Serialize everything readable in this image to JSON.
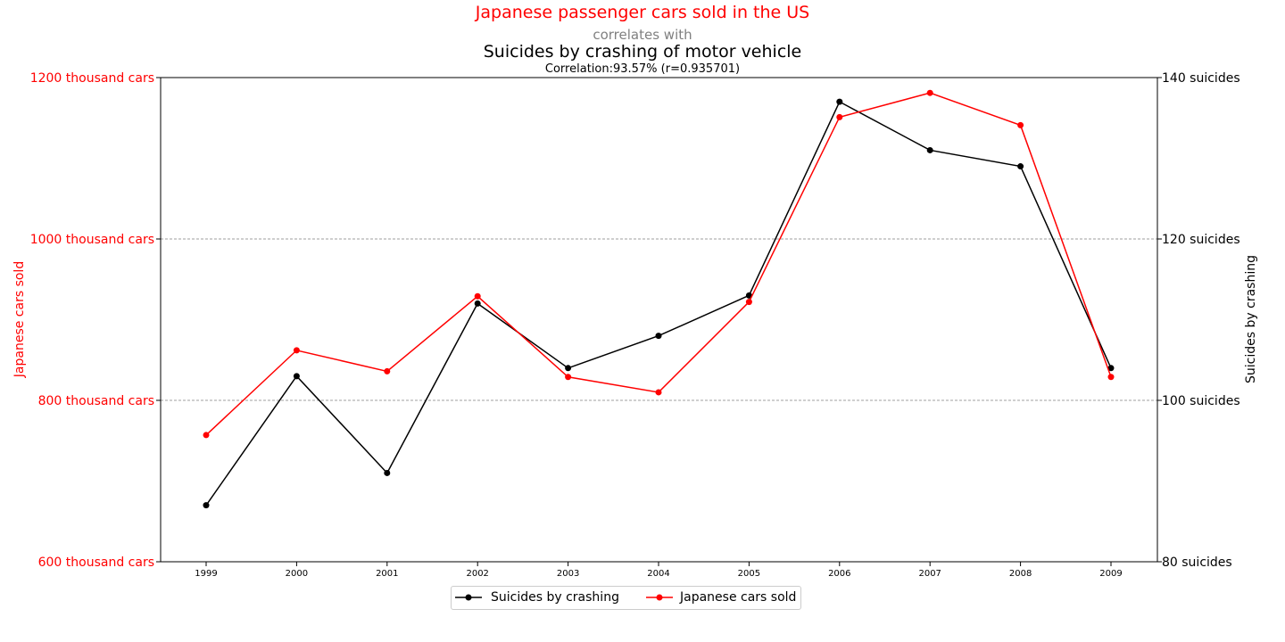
{
  "header": {
    "title": "Japanese passenger cars sold in the US",
    "connector": "correlates with",
    "subtitle": "Suicides by crashing of motor vehicle",
    "correlation": "Correlation:93.57% (r=0.935701)"
  },
  "colors": {
    "left_series": "#ff0000",
    "right_series": "#000000",
    "grid": "#808080"
  },
  "chart_data": {
    "type": "line",
    "x": [
      "1999",
      "2000",
      "2001",
      "2002",
      "2003",
      "2004",
      "2005",
      "2006",
      "2007",
      "2008",
      "2009"
    ],
    "y_left": {
      "label": "Japanese cars sold",
      "range": [
        600,
        1200
      ],
      "ticks": [
        600,
        800,
        1000,
        1200
      ],
      "tick_labels": [
        "600 thousand cars",
        "800 thousand cars",
        "1000 thousand cars",
        "1200 thousand cars"
      ]
    },
    "y_right": {
      "label": "Suicides by crashing",
      "range": [
        80,
        140
      ],
      "ticks": [
        80,
        100,
        120,
        140
      ],
      "tick_labels": [
        "80 suicides",
        "100 suicides",
        "120 suicides",
        "140 suicides"
      ]
    },
    "series": [
      {
        "name": "Suicides by crashing",
        "axis": "right",
        "color": "#000000",
        "values": [
          87,
          103,
          91,
          112,
          104,
          108,
          113,
          137,
          131,
          129,
          104
        ]
      },
      {
        "name": "Japanese cars sold",
        "axis": "left",
        "color": "#ff0000",
        "values": [
          757,
          862,
          836,
          929,
          829,
          810,
          922,
          1151,
          1181,
          1141,
          829
        ]
      }
    ],
    "grid": "dashed horizontal at 800 and 1000",
    "legend_position": "bottom-center"
  }
}
